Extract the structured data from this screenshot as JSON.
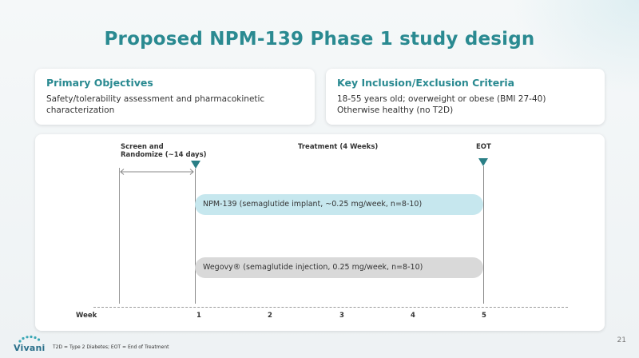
{
  "slide": {
    "title": "Proposed NPM-139 Phase 1 study design",
    "page_number": "21",
    "footer_note": "T2D = Type 2 Diabetes; EOT = End of Treatment",
    "logo_text": "Vivani"
  },
  "objectives": {
    "title": "Primary Objectives",
    "body_line1": "Safety/tolerability assessment and pharmacokinetic",
    "body_line2": "characterization"
  },
  "criteria": {
    "title": "Key Inclusion/Exclusion Criteria",
    "body_line1": "18-55 years old; overweight or obese (BMI 27-40)",
    "body_line2": "Otherwise healthy (no T2D)"
  },
  "diagram": {
    "screen_label_line1": "Screen and",
    "screen_label_line2": "Randomize (~14 days)",
    "treatment_label": "Treatment (4 Weeks)",
    "eot_label": "EOT",
    "arm_npm": "NPM-139 (semaglutide implant, ~0.25 mg/week, n=8-10)",
    "arm_wegovy": "Wegovy® (semaglutide injection, 0.25 mg/week, n=8-10)",
    "axis_label": "Week",
    "weeks": [
      "1",
      "2",
      "3",
      "4",
      "5"
    ],
    "colors": {
      "accent": "#2a8a91",
      "npm_bar": "#c6e7ee",
      "wegovy_bar": "#d9d9d9",
      "marker": "#2a7f86"
    }
  }
}
